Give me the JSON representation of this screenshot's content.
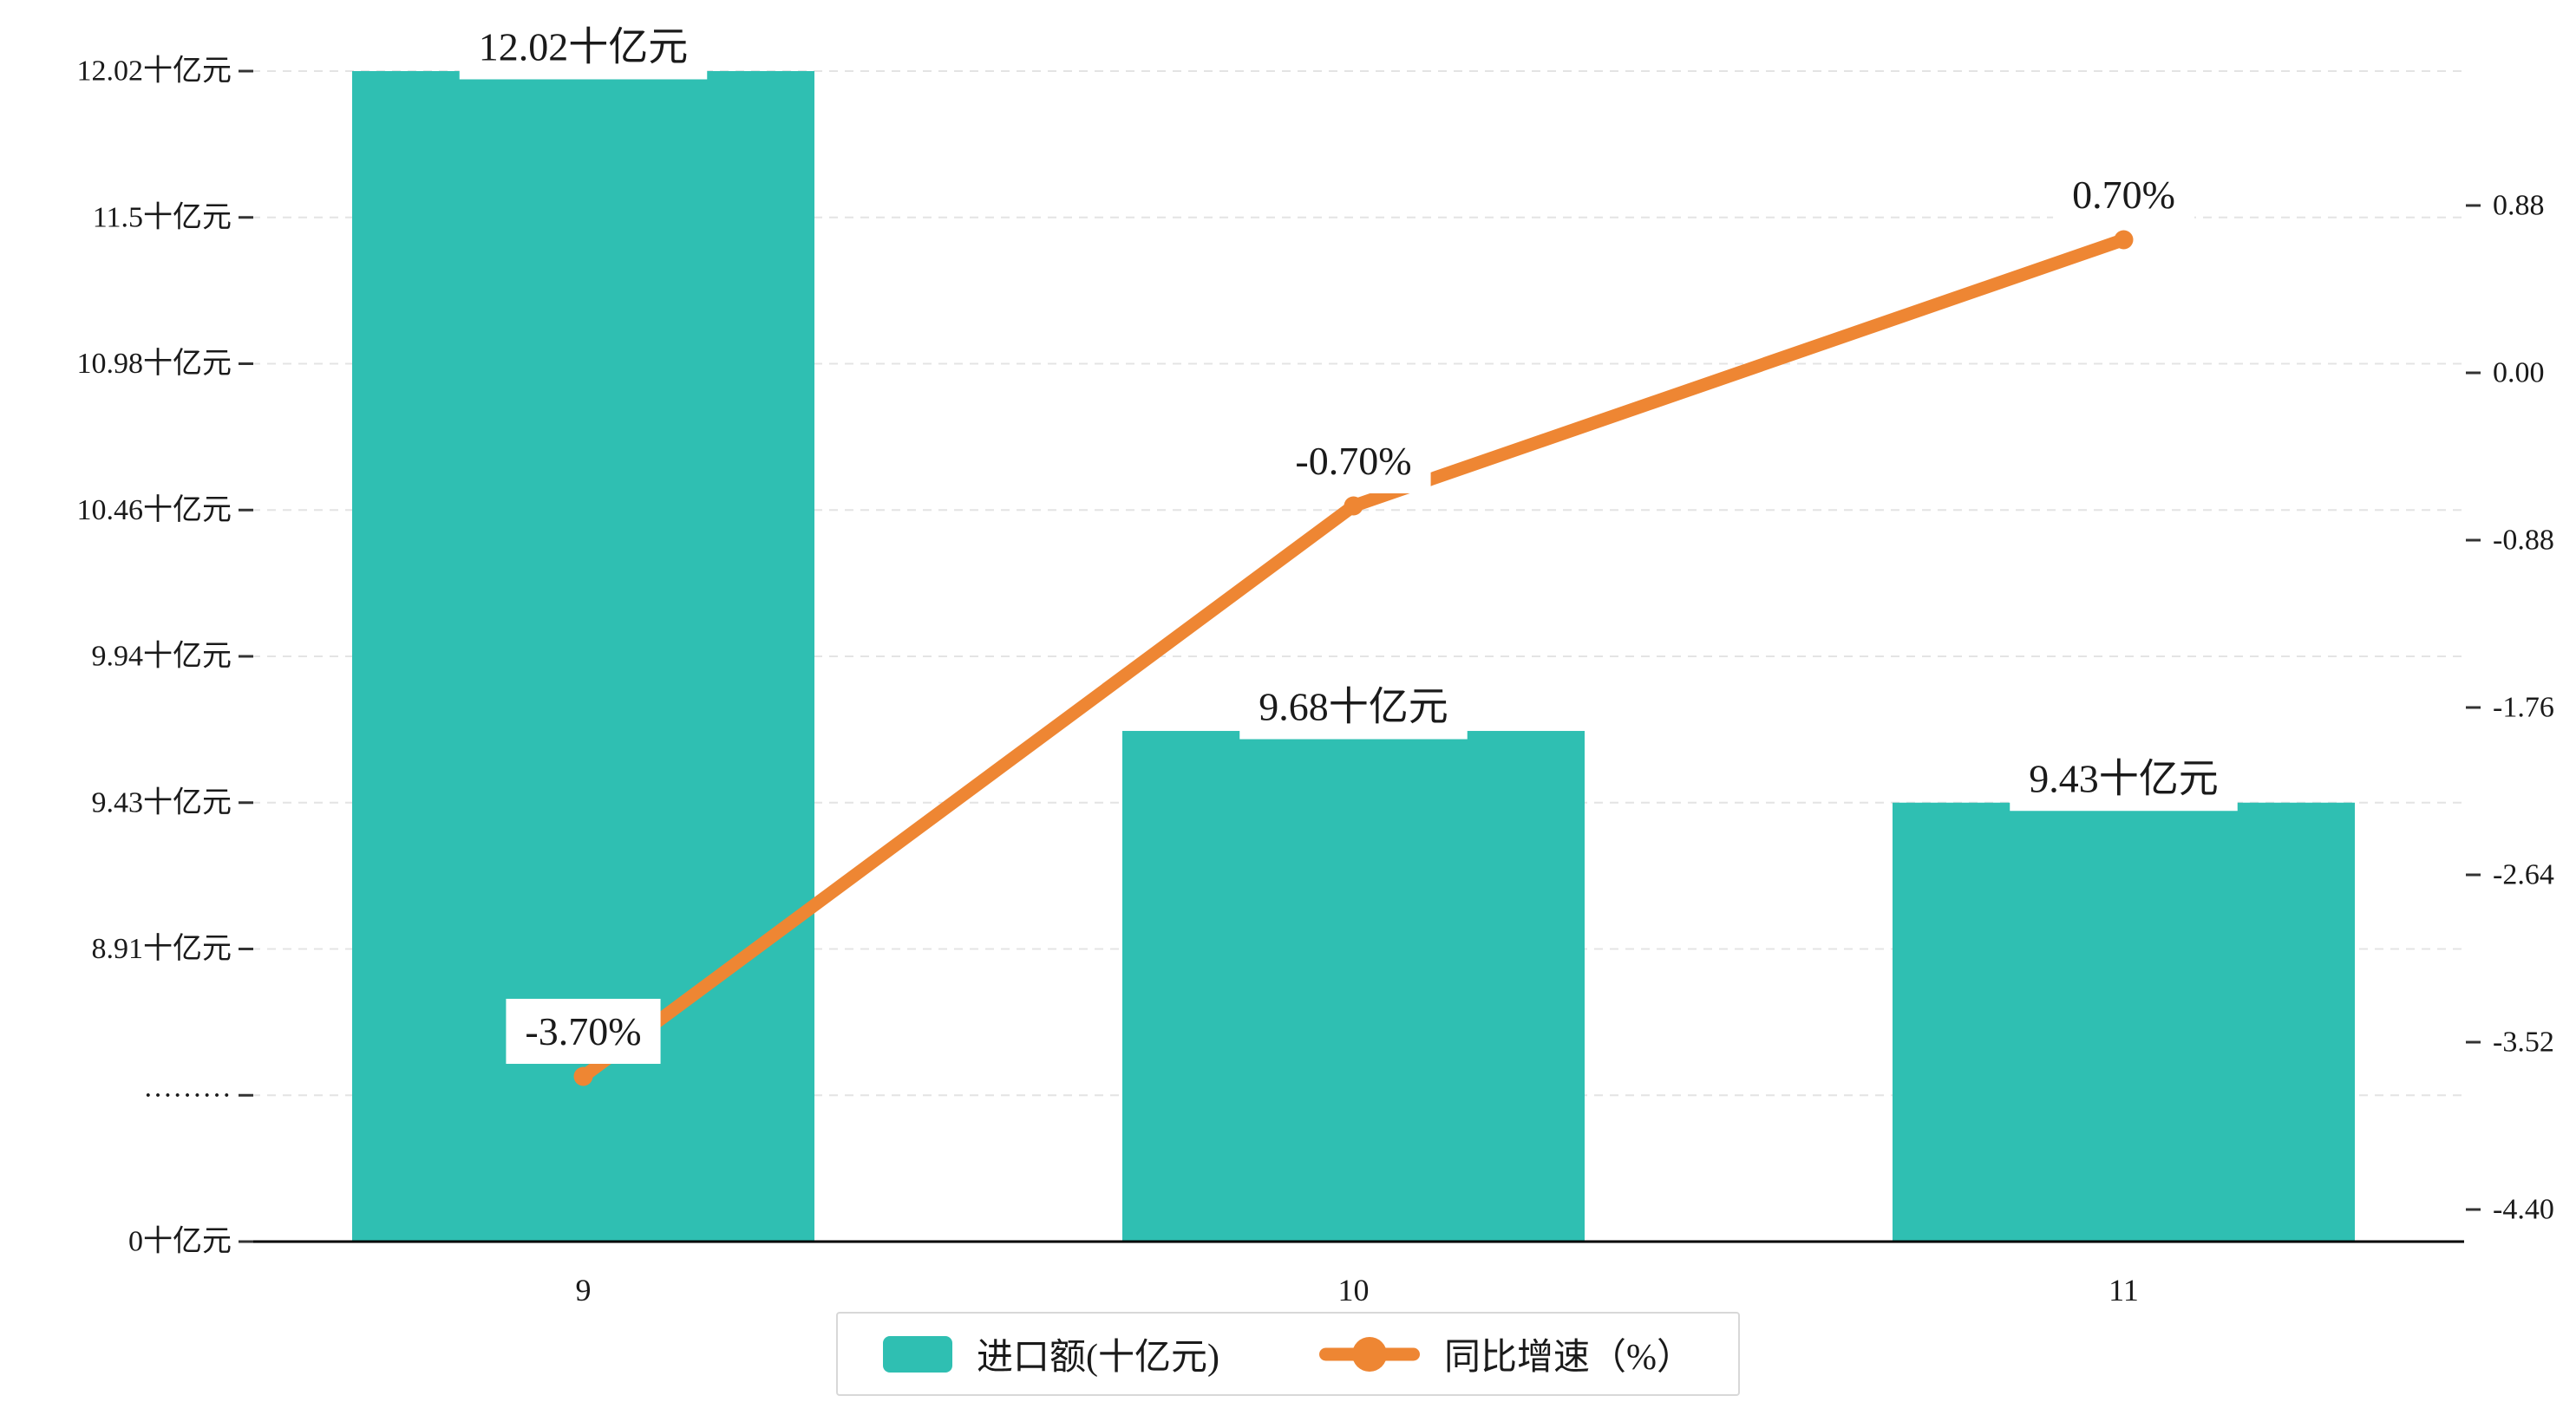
{
  "chart_data": {
    "type": "bar+line",
    "title": "",
    "xlabel": "",
    "categories": [
      "9",
      "10",
      "11"
    ],
    "series": [
      {
        "name": "进口额(十亿元)",
        "type": "bar",
        "axis": "left",
        "values": [
          12.02,
          9.68,
          9.43
        ],
        "data_labels": [
          "12.02十亿元",
          "9.68十亿元",
          "9.43十亿元"
        ],
        "color": "#2fbfb2"
      },
      {
        "name": "同比增速（%）",
        "type": "line",
        "axis": "right",
        "values": [
          -3.7,
          -0.7,
          0.7
        ],
        "data_labels": [
          "-3.70%",
          "-0.70%",
          "0.70%"
        ],
        "color": "#ee8633"
      }
    ],
    "left_axis": {
      "tick_labels": [
        "12.02十亿元",
        "11.5十亿元",
        "10.98十亿元",
        "10.46十亿元",
        "9.94十亿元",
        "9.43十亿元",
        "8.91十亿元",
        "·········",
        "0十亿元"
      ],
      "tick_values": [
        12.02,
        11.5,
        10.98,
        10.46,
        9.94,
        9.43,
        8.91,
        null,
        0
      ],
      "axis_break": true
    },
    "right_axis": {
      "tick_labels": [
        "0.88",
        "0.00",
        "-0.88",
        "-1.76",
        "-2.64",
        "-3.52",
        "-4.40"
      ],
      "min": -4.4,
      "max": 0.88
    },
    "legend": {
      "position": "bottom-center",
      "items": [
        {
          "label": "进口额(十亿元)",
          "marker": "bar-swatch"
        },
        {
          "label": "同比增速（%）",
          "marker": "line-dot"
        }
      ]
    },
    "grid": "horizontal-dashed"
  },
  "colors": {
    "bar": "#2fbfb2",
    "line": "#ee8633",
    "grid": "#e4e4e4",
    "axis": "#000000",
    "tick": "#333333",
    "text": "#1a1a1a",
    "label_bg": "#ffffff",
    "legend_border": "#d8d8d8",
    "background": "#ffffff"
  }
}
